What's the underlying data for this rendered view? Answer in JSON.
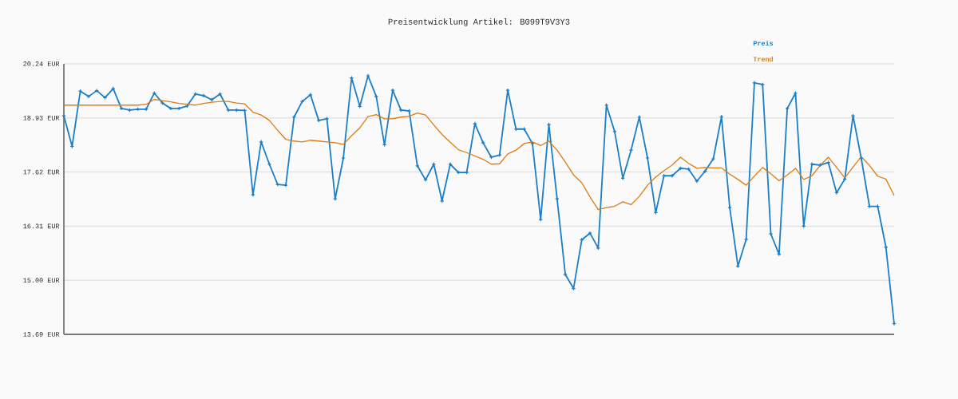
{
  "chart_data": {
    "type": "line",
    "title": "Preisentwicklung Artikel: B099T9V3Y3",
    "categories": [
      null,
      null,
      null,
      null,
      null,
      null,
      null,
      null,
      null,
      null,
      null,
      null,
      null,
      null,
      null,
      null,
      null,
      null,
      null,
      null,
      null,
      null,
      null,
      null,
      null,
      null,
      null,
      null,
      null,
      null,
      null,
      null,
      null,
      null,
      null,
      null,
      null,
      null,
      null,
      null,
      null,
      null,
      null,
      null,
      null,
      null,
      null,
      null,
      null,
      null,
      null,
      null,
      null,
      null,
      null,
      null,
      null,
      null,
      null,
      null,
      null,
      null,
      null,
      null,
      null,
      null,
      null,
      null,
      null,
      null,
      null,
      null,
      null,
      null,
      null,
      null,
      null,
      null,
      null,
      null,
      null,
      null,
      null,
      null,
      null,
      null,
      null,
      null,
      null,
      null,
      null,
      null,
      null,
      null,
      null,
      null,
      null,
      null,
      null,
      null,
      null,
      null
    ],
    "series": [
      {
        "name": "Preis",
        "color": "#1a7fc8",
        "marker": "cross",
        "values": [
          18.98,
          18.24,
          19.58,
          19.45,
          19.59,
          19.42,
          19.64,
          19.16,
          19.12,
          19.14,
          19.14,
          19.53,
          19.29,
          19.16,
          19.16,
          19.22,
          19.51,
          19.47,
          19.37,
          19.51,
          19.12,
          19.12,
          19.11,
          17.07,
          18.35,
          17.81,
          17.32,
          17.3,
          18.95,
          19.33,
          19.49,
          18.87,
          18.91,
          16.97,
          17.96,
          19.9,
          19.21,
          19.95,
          19.45,
          18.28,
          19.6,
          19.12,
          19.1,
          17.77,
          17.43,
          17.81,
          16.92,
          17.81,
          17.61,
          17.61,
          18.79,
          18.33,
          17.98,
          18.03,
          19.6,
          18.66,
          18.66,
          18.31,
          16.47,
          18.77,
          16.97,
          15.14,
          14.8,
          15.98,
          16.14,
          15.78,
          19.24,
          18.6,
          17.47,
          18.15,
          18.95,
          17.96,
          16.64,
          17.53,
          17.53,
          17.71,
          17.69,
          17.4,
          17.64,
          17.94,
          18.96,
          16.76,
          15.34,
          15.99,
          19.78,
          19.74,
          16.12,
          15.63,
          19.16,
          19.53,
          16.31,
          17.81,
          17.79,
          17.85,
          17.12,
          17.45,
          18.98,
          17.95,
          16.79,
          16.79,
          15.8,
          13.95
        ]
      },
      {
        "name": "Trend",
        "color": "#e07b10",
        "values": [
          19.24,
          19.24,
          19.24,
          19.24,
          19.24,
          19.24,
          19.24,
          19.24,
          19.24,
          19.24,
          19.26,
          19.38,
          19.35,
          19.32,
          19.28,
          19.26,
          19.24,
          19.28,
          19.31,
          19.33,
          19.33,
          19.29,
          19.27,
          19.07,
          19.0,
          18.87,
          18.63,
          18.41,
          18.37,
          18.35,
          18.39,
          18.37,
          18.35,
          18.33,
          18.29,
          18.5,
          18.69,
          18.96,
          19.01,
          18.91,
          18.91,
          18.95,
          18.97,
          19.05,
          19.0,
          18.76,
          18.53,
          18.34,
          18.16,
          18.09,
          18.01,
          17.93,
          17.81,
          17.82,
          18.06,
          18.15,
          18.31,
          18.35,
          18.26,
          18.37,
          18.15,
          17.86,
          17.55,
          17.36,
          17.02,
          16.71,
          16.76,
          16.79,
          16.9,
          16.83,
          17.03,
          17.3,
          17.5,
          17.65,
          17.79,
          17.98,
          17.83,
          17.71,
          17.73,
          17.72,
          17.72,
          17.57,
          17.44,
          17.3,
          17.52,
          17.73,
          17.58,
          17.41,
          17.55,
          17.71,
          17.44,
          17.53,
          17.78,
          17.98,
          17.73,
          17.48,
          17.74,
          17.99,
          17.78,
          17.52,
          17.45,
          17.05
        ]
      }
    ],
    "ylim": [
      13.69,
      20.24
    ],
    "yticks": [
      {
        "value": 13.69,
        "label": "13.69 EUR"
      },
      {
        "value": 15.0,
        "label": "15.00 EUR"
      },
      {
        "value": 16.31,
        "label": "16.31 EUR"
      },
      {
        "value": 17.62,
        "label": "17.62 EUR"
      },
      {
        "value": 18.93,
        "label": "18.93 EUR"
      },
      {
        "value": 20.24,
        "label": "20.24 EUR"
      }
    ],
    "grid": "y",
    "legend": "top right",
    "tick_labels": "y"
  }
}
